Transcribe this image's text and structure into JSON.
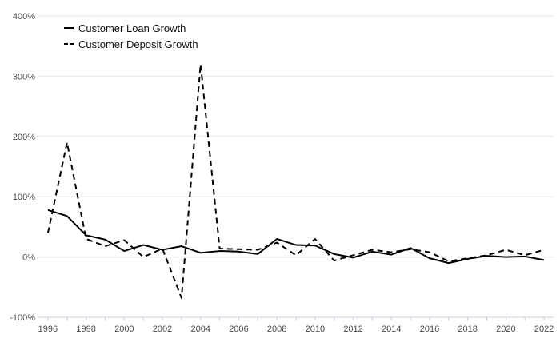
{
  "chart_data": {
    "type": "line",
    "x": [
      1996,
      1997,
      1998,
      1999,
      2000,
      2001,
      2002,
      2003,
      2004,
      2005,
      2006,
      2007,
      2008,
      2009,
      2010,
      2011,
      2012,
      2013,
      2014,
      2015,
      2016,
      2017,
      2018,
      2019,
      2020,
      2021,
      2022
    ],
    "series": [
      {
        "name": "Customer Loan Growth",
        "style": "solid",
        "color": "#000000",
        "values": [
          78,
          68,
          36,
          29,
          10,
          20,
          12,
          18,
          7,
          10,
          9,
          5,
          30,
          20,
          19,
          5,
          -1,
          9,
          4,
          15,
          -2,
          -10,
          -3,
          2,
          0,
          1,
          -5
        ]
      },
      {
        "name": "Customer Deposit Growth",
        "style": "dashed",
        "color": "#000000",
        "values": [
          40,
          190,
          30,
          18,
          28,
          0,
          14,
          -68,
          320,
          14,
          13,
          12,
          24,
          3,
          30,
          -6,
          3,
          12,
          8,
          13,
          8,
          -7,
          -2,
          3,
          12,
          3,
          12
        ]
      }
    ],
    "ylim": [
      -100,
      400
    ],
    "yticks": [
      -100,
      0,
      100,
      200,
      300,
      400
    ],
    "ytick_labels": [
      "-100%",
      "0%",
      "100%",
      "200%",
      "300%",
      "400%"
    ],
    "xticks": [
      1996,
      1998,
      2000,
      2002,
      2004,
      2006,
      2008,
      2010,
      2012,
      2014,
      2016,
      2018,
      2020,
      2022
    ],
    "xtick_labels": [
      "1996",
      "1998",
      "2000",
      "2002",
      "2004",
      "2006",
      "2008",
      "2010",
      "2012",
      "2014",
      "2016",
      "2018",
      "2020",
      "2022"
    ],
    "xlim": [
      1995.5,
      2022.5
    ],
    "grid": true,
    "legend_position": "top-left",
    "title": "",
    "xlabel": "",
    "ylabel": ""
  }
}
